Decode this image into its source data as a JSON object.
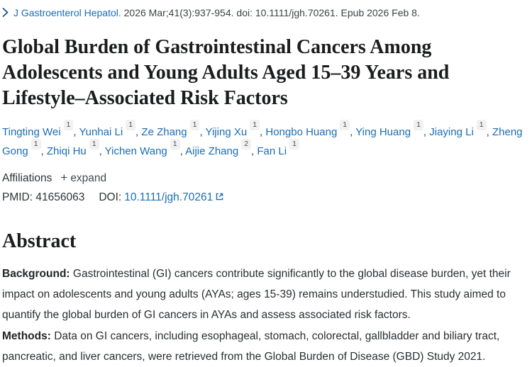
{
  "theme": {
    "link_blue": "#1a6db4",
    "chevron_navy": "#1e4e79",
    "text_dark": "#25282b",
    "sup_badge_bg": "#f1f1f1"
  },
  "citation": {
    "journal": "J Gastroenterol Hepatol.",
    "details": "2026 Mar;41(3):937-954. doi: 10.1111/jgh.70261. Epub 2026 Feb 8."
  },
  "title": "Global Burden of Gastrointestinal Cancers Among Adolescents and Young Adults Aged 15–39 Years and Lifestyle–Associated Risk Factors",
  "authors": [
    {
      "name": "Tingting Wei",
      "sup": "1"
    },
    {
      "name": "Yunhai Li",
      "sup": "1"
    },
    {
      "name": "Ze Zhang",
      "sup": "1"
    },
    {
      "name": "Yijing Xu",
      "sup": "1"
    },
    {
      "name": "Hongbo Huang",
      "sup": "1"
    },
    {
      "name": "Ying Huang",
      "sup": "1"
    },
    {
      "name": "Jiaying Li",
      "sup": "1"
    },
    {
      "name": "Zheng Gong",
      "sup": "1"
    },
    {
      "name": "Zhiqi Hu",
      "sup": "1"
    },
    {
      "name": "Yichen Wang",
      "sup": "1"
    },
    {
      "name": "Aijie Zhang",
      "sup": "2"
    },
    {
      "name": "Fan Li",
      "sup": "1"
    }
  ],
  "affiliations": {
    "label": "Affiliations",
    "plus": "+",
    "expand_label": "expand"
  },
  "ids": {
    "pmid_label": "PMID:",
    "pmid": "41656063",
    "doi_label": "DOI:",
    "doi": "10.1111/jgh.70261"
  },
  "abstract": {
    "heading": "Abstract",
    "paragraphs": [
      {
        "label": "Background:",
        "text": "Gastrointestinal (GI) cancers contribute significantly to the global disease burden, yet their impact on adolescents and young adults (AYAs; ages 15-39) remains understudied. This study aimed to quantify the global burden of GI cancers in AYAs and assess associated risk factors."
      },
      {
        "label": "Methods:",
        "text": "Data on GI cancers, including esophageal, stomach, colorectal, gallbladder and biliary tract, pancreatic, and liver cancers, were retrieved from the Global Burden of Disease (GBD) Study 2021."
      }
    ]
  }
}
